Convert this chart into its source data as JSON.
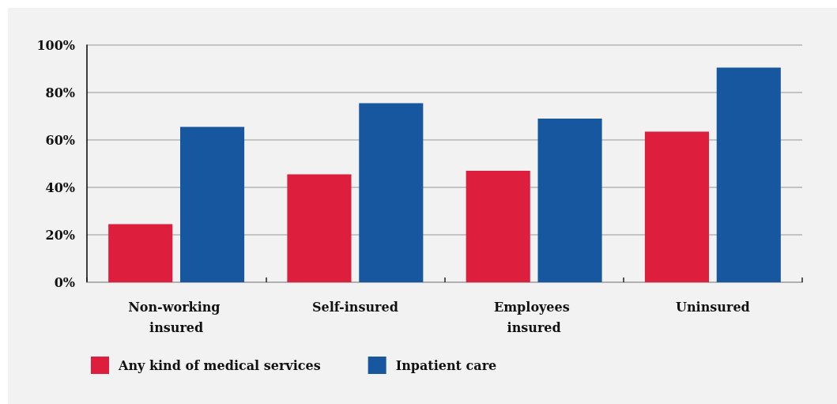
{
  "chart_data": {
    "type": "bar",
    "categories": [
      "Non-working insured",
      "Self-insured",
      "Employees insured",
      "Uninsured"
    ],
    "series": [
      {
        "name": "Any kind of medical services",
        "color": "#dd1f3d",
        "values": [
          24.5,
          45.5,
          47,
          63.5
        ]
      },
      {
        "name": "Inpatient care",
        "color": "#1757a0",
        "values": [
          65.5,
          75.5,
          69,
          90.5
        ]
      }
    ],
    "ylim": [
      0,
      100
    ],
    "yticks": [
      {
        "value": 0,
        "label": "0%"
      },
      {
        "value": 20,
        "label": "20%"
      },
      {
        "value": 40,
        "label": "40%"
      },
      {
        "value": 60,
        "label": "60%"
      },
      {
        "value": 80,
        "label": "80%"
      },
      {
        "value": 100,
        "label": "100%"
      }
    ],
    "grid": "y",
    "legend": "bottom left"
  }
}
